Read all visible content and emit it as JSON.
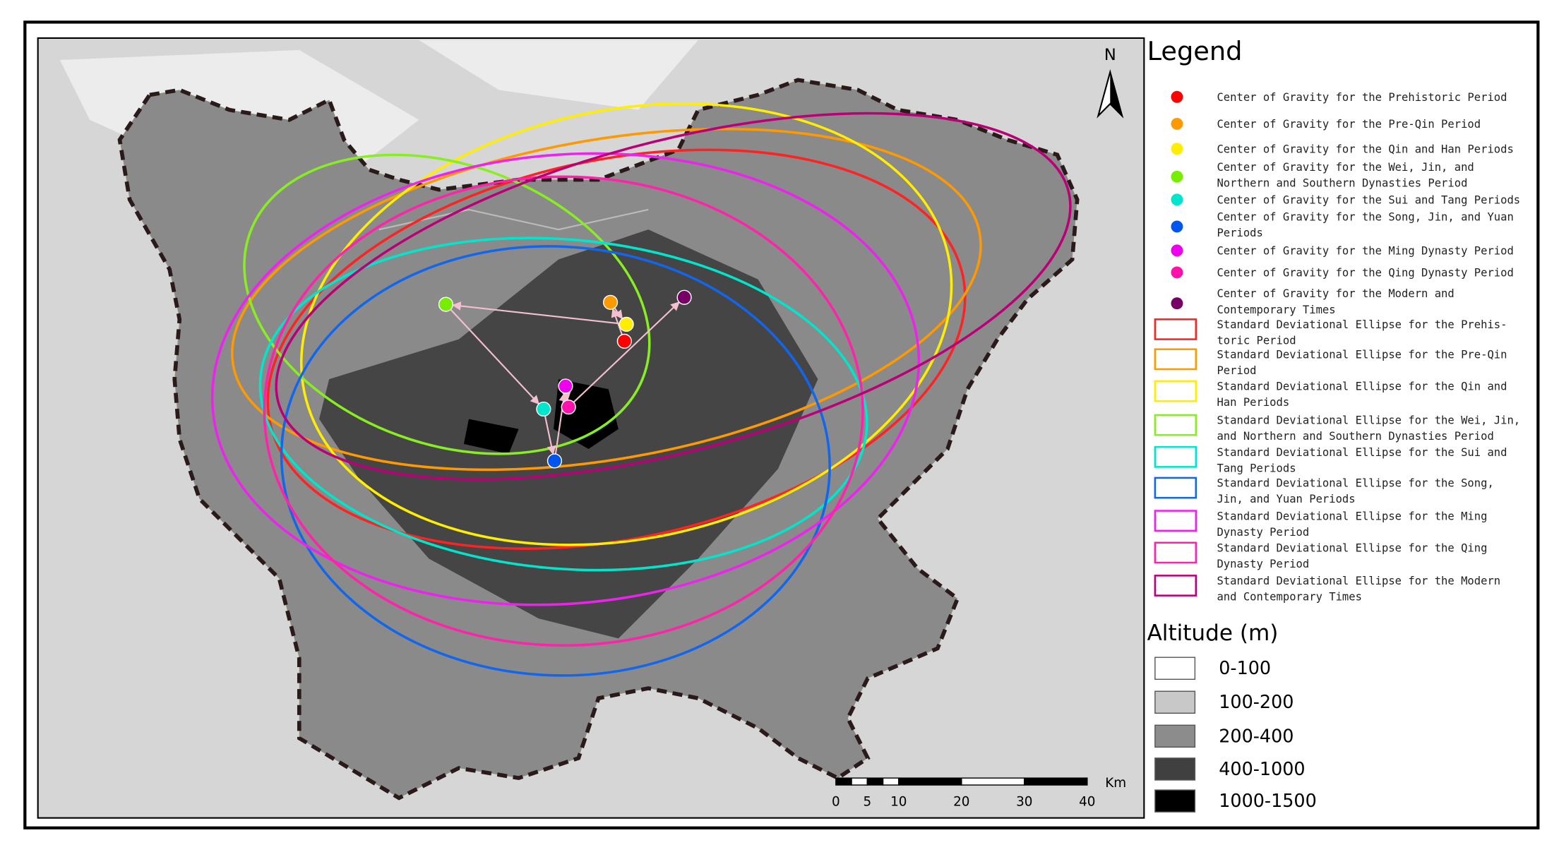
{
  "north": "N",
  "legend": {
    "title": "Legend",
    "points": [
      {
        "label": [
          "Center of Gravity for the Prehistoric Period"
        ],
        "color": "#ff0000"
      },
      {
        "label": [
          "Center of Gravity for the Pre-Qin Period"
        ],
        "color": "#ff9900"
      },
      {
        "label": [
          "Center of Gravity for the Qin and Han Periods"
        ],
        "color": "#ffee00"
      },
      {
        "label": [
          "Center of Gravity for the Wei, Jin, and",
          "Northern and Southern Dynasties Period"
        ],
        "color": "#77ee00"
      },
      {
        "label": [
          "Center of Gravity for the Sui and Tang Periods"
        ],
        "color": "#00e6cc"
      },
      {
        "label": [
          "Center of Gravity for the Song, Jin, and Yuan",
          "Periods"
        ],
        "color": "#0055ee"
      },
      {
        "label": [
          "Center of Gravity for the Ming Dynasty Period"
        ],
        "color": "#ee00ee"
      },
      {
        "label": [
          "Center of Gravity for the Qing Dynasty Period"
        ],
        "color": "#ff11aa"
      },
      {
        "label": [
          "Center of Gravity for the Modern and",
          "Contemporary Times"
        ],
        "color": "#770066"
      }
    ],
    "ellipses": [
      {
        "label": [
          "Standard Deviational Ellipse for the Prehis-",
          "toric Period"
        ],
        "color": "#ff2222"
      },
      {
        "label": [
          "Standard Deviational Ellipse for the Pre-Qin",
          "Period"
        ],
        "color": "#ff9900"
      },
      {
        "label": [
          "Standard Deviational Ellipse for the Qin and",
          "Han Periods"
        ],
        "color": "#ffee00"
      },
      {
        "label": [
          "Standard Deviational Ellipse for the Wei, Jin,",
          "and Northern and Southern Dynasties Period"
        ],
        "color": "#88ee22"
      },
      {
        "label": [
          "Standard Deviational Ellipse for the Sui and",
          "Tang Periods"
        ],
        "color": "#00e6cc"
      },
      {
        "label": [
          "Standard Deviational Ellipse for the Song,",
          "Jin, and Yuan Periods"
        ],
        "color": "#1166ee"
      },
      {
        "label": [
          "Standard Deviational Ellipse for the Ming",
          "Dynasty Period"
        ],
        "color": "#ee22ee"
      },
      {
        "label": [
          "Standard Deviational Ellipse for the Qing",
          "Dynasty Period"
        ],
        "color": "#ff22aa"
      },
      {
        "label": [
          "Standard Deviational Ellipse for the Modern",
          "and Contemporary Times"
        ],
        "color": "#bb0077"
      }
    ]
  },
  "altitude": {
    "title": "Altitude (m)",
    "items": [
      {
        "label": "0-100",
        "color": "#ffffff"
      },
      {
        "label": "100-200",
        "color": "#c8c8c8"
      },
      {
        "label": "200-400",
        "color": "#8c8c8c"
      },
      {
        "label": "400-1000",
        "color": "#404040"
      },
      {
        "label": "1000-1500",
        "color": "#000000"
      }
    ]
  },
  "scale_bar": {
    "ticks": [
      0,
      5,
      10,
      20,
      30,
      40
    ],
    "unit": "Km"
  }
}
